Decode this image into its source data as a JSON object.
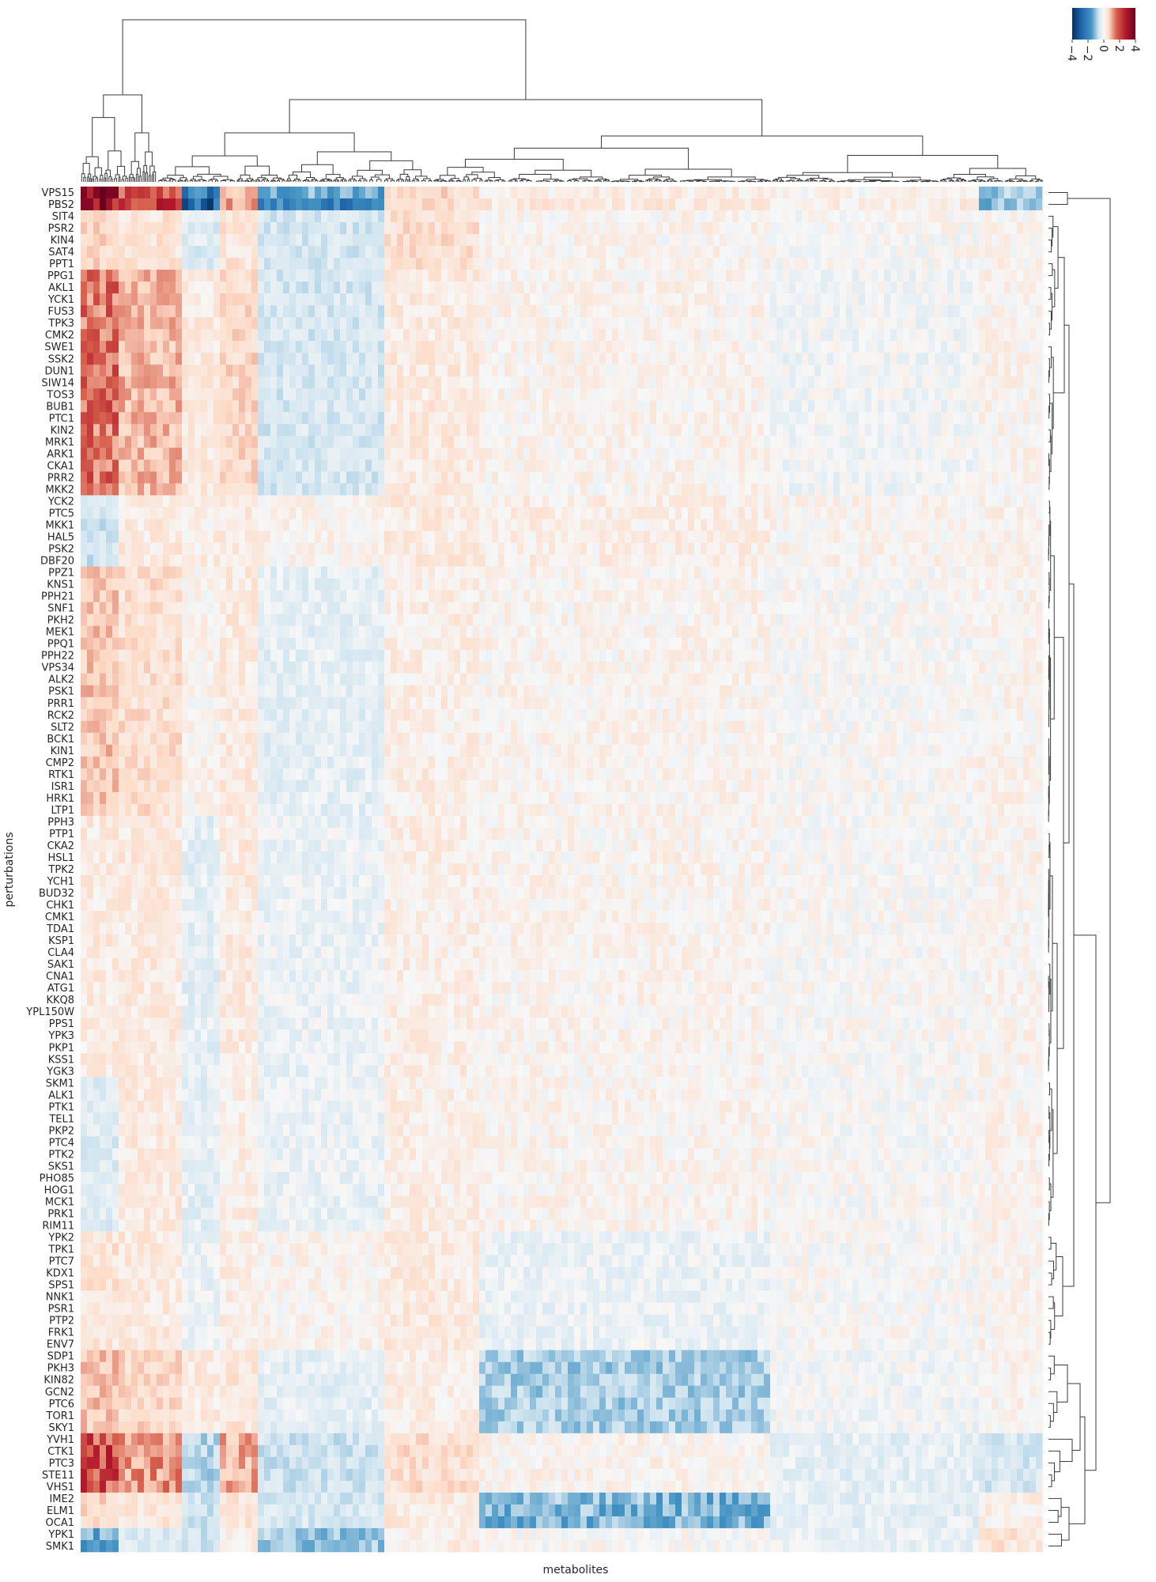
{
  "chart_data": {
    "type": "heatmap",
    "title": "",
    "xlabel": "metabolites",
    "ylabel": "perturbations",
    "colormap": "RdBu_r",
    "color_range": [
      -4,
      4
    ],
    "colorbar": {
      "ticks": [
        -4,
        -2,
        0,
        2,
        4
      ],
      "tick_labels": [
        "−4",
        "−2",
        "0",
        "2",
        "4"
      ],
      "placement": "top-right"
    },
    "column_dendrogram": true,
    "row_dendrogram": true,
    "rows": [
      "VPS15",
      "PBS2",
      "SIT4",
      "PSR2",
      "KIN4",
      "SAT4",
      "PPT1",
      "PPG1",
      "AKL1",
      "YCK1",
      "FUS3",
      "TPK3",
      "CMK2",
      "SWE1",
      "SSK2",
      "DUN1",
      "SIW14",
      "TOS3",
      "BUB1",
      "PTC1",
      "KIN2",
      "MRK1",
      "ARK1",
      "CKA1",
      "PRR2",
      "MKK2",
      "YCK2",
      "PTC5",
      "MKK1",
      "HAL5",
      "PSK2",
      "DBF20",
      "PPZ1",
      "KNS1",
      "PPH21",
      "SNF1",
      "PKH2",
      "MEK1",
      "PPQ1",
      "PPH22",
      "VPS34",
      "ALK2",
      "PSK1",
      "PRR1",
      "RCK2",
      "SLT2",
      "BCK1",
      "KIN1",
      "CMP2",
      "RTK1",
      "ISR1",
      "HRK1",
      "LTP1",
      "PPH3",
      "PTP1",
      "CKA2",
      "HSL1",
      "TPK2",
      "YCH1",
      "BUD32",
      "CHK1",
      "CMK1",
      "TDA1",
      "KSP1",
      "CLA4",
      "SAK1",
      "CNA1",
      "ATG1",
      "KKQ8",
      "YPL150W",
      "PPS1",
      "YPK3",
      "PKP1",
      "KSS1",
      "YGK3",
      "SKM1",
      "ALK1",
      "PTK1",
      "TEL1",
      "PKP2",
      "PTC4",
      "PTK2",
      "SKS1",
      "PHO85",
      "HOG1",
      "MCK1",
      "PRK1",
      "RIM11",
      "YPK2",
      "TPK1",
      "PTC7",
      "KDX1",
      "SPS1",
      "NNK1",
      "PSR1",
      "PTP2",
      "FRK1",
      "ENV7",
      "SDP1",
      "PKH3",
      "KIN82",
      "GCN2",
      "PTC6",
      "TOR1",
      "SKY1",
      "YVH1",
      "CTK1",
      "PTC3",
      "STE11",
      "VHS1",
      "IME2",
      "ELM1",
      "OCA1",
      "YPK1",
      "SMK1"
    ],
    "row_profiles": [
      {
        "rows": [
          0
        ],
        "segments": [
          [
            0,
            0.045,
            3.2
          ],
          [
            0.045,
            0.11,
            1.8
          ],
          [
            0.11,
            0.15,
            -2.2
          ],
          [
            0.15,
            0.19,
            0.8
          ],
          [
            0.19,
            0.32,
            -1.4
          ],
          [
            0.32,
            0.42,
            0.6
          ],
          [
            0.42,
            0.72,
            0.2
          ],
          [
            0.72,
            0.94,
            0.1
          ],
          [
            0.94,
            1,
            -1.0
          ]
        ]
      },
      {
        "rows": [
          1
        ],
        "segments": [
          [
            0,
            0.045,
            3.6
          ],
          [
            0.045,
            0.11,
            2.4
          ],
          [
            0.11,
            0.15,
            -2.8
          ],
          [
            0.15,
            0.19,
            1.0
          ],
          [
            0.19,
            0.32,
            -2.0
          ],
          [
            0.32,
            0.42,
            0.5
          ],
          [
            0.42,
            0.72,
            0.3
          ],
          [
            0.72,
            0.94,
            0.2
          ],
          [
            0.94,
            1,
            -1.2
          ]
        ]
      },
      {
        "rows": [
          2,
          3,
          4,
          5,
          6
        ],
        "segments": [
          [
            0,
            0.045,
            0.6
          ],
          [
            0.045,
            0.11,
            0.4
          ],
          [
            0.11,
            0.15,
            -0.4
          ],
          [
            0.15,
            0.19,
            0.4
          ],
          [
            0.19,
            0.32,
            -0.5
          ],
          [
            0.32,
            0.42,
            0.5
          ],
          [
            0.42,
            0.72,
            0.1
          ],
          [
            0.72,
            0.94,
            0.0
          ],
          [
            0.94,
            1,
            0.1
          ]
        ]
      },
      {
        "rows": [
          7,
          8,
          9,
          10,
          11,
          12,
          13,
          14,
          15,
          16,
          17,
          18,
          19,
          20,
          21,
          22,
          23,
          24,
          25
        ],
        "segments": [
          [
            0,
            0.045,
            1.6
          ],
          [
            0.045,
            0.11,
            0.9
          ],
          [
            0.11,
            0.15,
            0.3
          ],
          [
            0.15,
            0.19,
            0.6
          ],
          [
            0.19,
            0.32,
            -0.5
          ],
          [
            0.32,
            0.42,
            0.3
          ],
          [
            0.42,
            0.72,
            0.1
          ],
          [
            0.72,
            0.94,
            -0.1
          ],
          [
            0.94,
            1,
            0.1
          ]
        ]
      },
      {
        "rows": [
          26,
          27,
          28,
          29,
          30,
          31
        ],
        "segments": [
          [
            0,
            0.045,
            -0.6
          ],
          [
            0.045,
            0.11,
            0.3
          ],
          [
            0.11,
            0.15,
            0.2
          ],
          [
            0.15,
            0.19,
            0.3
          ],
          [
            0.19,
            0.32,
            0.1
          ],
          [
            0.32,
            0.42,
            0.3
          ],
          [
            0.42,
            0.72,
            0.2
          ],
          [
            0.72,
            0.94,
            0.1
          ],
          [
            0.94,
            1,
            0.1
          ]
        ]
      },
      {
        "rows": [
          32,
          33,
          34,
          35,
          36,
          37,
          38,
          39,
          40,
          41,
          42,
          43,
          44,
          45,
          46,
          47,
          48,
          49,
          50,
          51,
          52
        ],
        "segments": [
          [
            0,
            0.045,
            0.8
          ],
          [
            0.045,
            0.11,
            0.5
          ],
          [
            0.11,
            0.15,
            0.1
          ],
          [
            0.15,
            0.19,
            0.3
          ],
          [
            0.19,
            0.32,
            -0.3
          ],
          [
            0.32,
            0.42,
            0.2
          ],
          [
            0.42,
            0.72,
            0.1
          ],
          [
            0.72,
            0.94,
            0.0
          ],
          [
            0.94,
            1,
            0.1
          ]
        ]
      },
      {
        "rows": [
          53,
          54,
          55,
          56,
          57,
          58,
          59,
          60,
          61,
          62,
          63,
          64,
          65,
          66,
          67,
          68,
          69,
          70,
          71,
          72,
          73,
          74
        ],
        "segments": [
          [
            0,
            0.045,
            0.3
          ],
          [
            0.045,
            0.11,
            0.3
          ],
          [
            0.11,
            0.15,
            -0.3
          ],
          [
            0.15,
            0.19,
            0.3
          ],
          [
            0.19,
            0.32,
            -0.2
          ],
          [
            0.32,
            0.42,
            0.2
          ],
          [
            0.42,
            0.72,
            0.1
          ],
          [
            0.72,
            0.94,
            0.0
          ],
          [
            0.94,
            1,
            0.1
          ]
        ]
      },
      {
        "rows": [
          75,
          76,
          77,
          78,
          79,
          80,
          81,
          82,
          83,
          84,
          85,
          86,
          87
        ],
        "segments": [
          [
            0,
            0.045,
            -0.4
          ],
          [
            0.045,
            0.11,
            0.3
          ],
          [
            0.11,
            0.15,
            -0.3
          ],
          [
            0.15,
            0.19,
            0.2
          ],
          [
            0.19,
            0.32,
            -0.2
          ],
          [
            0.32,
            0.42,
            0.2
          ],
          [
            0.42,
            0.72,
            0.1
          ],
          [
            0.72,
            0.94,
            0.0
          ],
          [
            0.94,
            1,
            0.1
          ]
        ]
      },
      {
        "rows": [
          88,
          89,
          90,
          91,
          92,
          93,
          94,
          95,
          96,
          97
        ],
        "segments": [
          [
            0,
            0.045,
            0.4
          ],
          [
            0.045,
            0.11,
            0.3
          ],
          [
            0.11,
            0.15,
            -0.2
          ],
          [
            0.15,
            0.19,
            0.2
          ],
          [
            0.19,
            0.32,
            0.1
          ],
          [
            0.32,
            0.42,
            0.3
          ],
          [
            0.42,
            0.72,
            -0.2
          ],
          [
            0.72,
            0.94,
            0.0
          ],
          [
            0.94,
            1,
            0.1
          ]
        ]
      },
      {
        "rows": [
          98,
          99,
          100,
          101,
          102,
          103,
          104
        ],
        "segments": [
          [
            0,
            0.045,
            0.8
          ],
          [
            0.045,
            0.11,
            0.6
          ],
          [
            0.11,
            0.15,
            0.3
          ],
          [
            0.15,
            0.19,
            0.4
          ],
          [
            0.19,
            0.32,
            -0.3
          ],
          [
            0.32,
            0.42,
            0.2
          ],
          [
            0.42,
            0.72,
            -0.9
          ],
          [
            0.72,
            0.94,
            -0.1
          ],
          [
            0.94,
            1,
            0.1
          ]
        ]
      },
      {
        "rows": [
          105,
          106,
          107,
          108,
          109
        ],
        "segments": [
          [
            0,
            0.045,
            2.0
          ],
          [
            0.045,
            0.11,
            1.2
          ],
          [
            0.11,
            0.15,
            -0.8
          ],
          [
            0.15,
            0.19,
            1.0
          ],
          [
            0.19,
            0.32,
            -0.6
          ],
          [
            0.32,
            0.42,
            0.5
          ],
          [
            0.42,
            0.72,
            0.1
          ],
          [
            0.72,
            0.94,
            -0.3
          ],
          [
            0.94,
            1,
            -0.5
          ]
        ]
      },
      {
        "rows": [
          110,
          111,
          112
        ],
        "segments": [
          [
            0,
            0.045,
            0.6
          ],
          [
            0.045,
            0.11,
            0.4
          ],
          [
            0.11,
            0.15,
            -0.6
          ],
          [
            0.15,
            0.19,
            0.4
          ],
          [
            0.19,
            0.32,
            -0.5
          ],
          [
            0.32,
            0.42,
            0.3
          ],
          [
            0.42,
            0.72,
            -1.2
          ],
          [
            0.72,
            0.94,
            -0.3
          ],
          [
            0.94,
            1,
            0.2
          ]
        ]
      },
      {
        "rows": [
          113,
          114
        ],
        "segments": [
          [
            0,
            0.045,
            -1.4
          ],
          [
            0.045,
            0.11,
            -0.4
          ],
          [
            0.11,
            0.15,
            -0.6
          ],
          [
            0.15,
            0.19,
            0.2
          ],
          [
            0.19,
            0.32,
            -1.0
          ],
          [
            0.32,
            0.42,
            0.2
          ],
          [
            0.42,
            0.72,
            0.0
          ],
          [
            0.72,
            0.94,
            -0.2
          ],
          [
            0.94,
            1,
            0.4
          ]
        ]
      }
    ]
  }
}
